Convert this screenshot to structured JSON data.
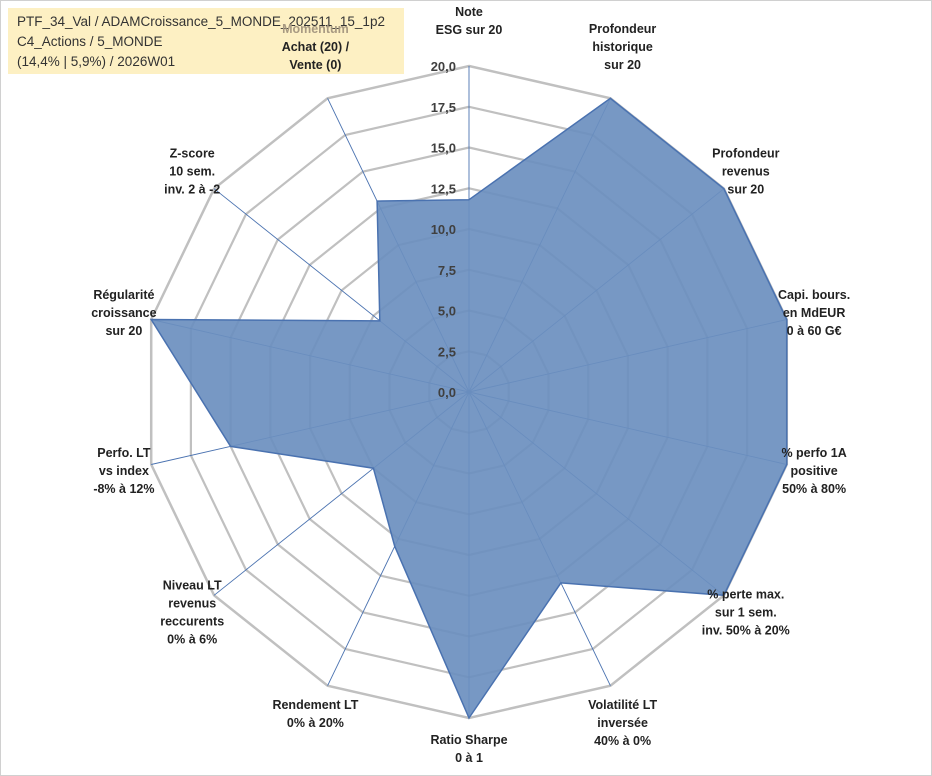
{
  "header": {
    "line1": "PTF_34_Val / ADAMCroissance_5_MONDE_202511_15_1p2",
    "line2": "C4_Actions / 5_MONDE",
    "line3": "(14,4% | 5,9%) / 2026W01"
  },
  "colors": {
    "fill": "#6b8fbf",
    "stroke": "#4a72b0",
    "grid": "#c0c0c0",
    "spoke": "#4a72b0",
    "header_bg": "#fdf0c3"
  },
  "chart_data": {
    "type": "radar",
    "title": "",
    "range": [
      0,
      20
    ],
    "tick_step": 2.5,
    "tick_labels": [
      "0,0",
      "2,5",
      "5,0",
      "7,5",
      "10,0",
      "12,5",
      "15,0",
      "17,5",
      "20,0"
    ],
    "axes": [
      {
        "lines": [
          "Note",
          "ESG sur 20"
        ],
        "value": 11.8
      },
      {
        "lines": [
          "Profondeur",
          "historique",
          "sur 20"
        ],
        "value": 20
      },
      {
        "lines": [
          "Profondeur",
          "revenus",
          "sur 20"
        ],
        "value": 20
      },
      {
        "lines": [
          "Capi. bours.",
          "en MdEUR",
          "0 à 60 G€"
        ],
        "value": 20
      },
      {
        "lines": [
          "% perfo 1A",
          "positive",
          "50% à 80%"
        ],
        "value": 20
      },
      {
        "lines": [
          "% perte max.",
          "sur 1 sem.",
          "inv. 50% à 20%"
        ],
        "value": 20
      },
      {
        "lines": [
          "Volatilité LT",
          "inversée",
          "40% à 0%"
        ],
        "value": 13
      },
      {
        "lines": [
          "Ratio Sharpe",
          "0 à 1"
        ],
        "value": 20
      },
      {
        "lines": [
          "Rendement LT",
          "0% à 20%"
        ],
        "value": 10.5
      },
      {
        "lines": [
          "Niveau LT",
          "revenus",
          "reccurents",
          "0% à 6%"
        ],
        "value": 7.5
      },
      {
        "lines": [
          "Perfo. LT",
          "vs index",
          "-8% à 12%"
        ],
        "value": 15
      },
      {
        "lines": [
          "Régularité",
          "croissance",
          "sur 20"
        ],
        "value": 20
      },
      {
        "lines": [
          "Z-score",
          "10 sem.",
          "inv. 2 à -2"
        ],
        "value": 7
      },
      {
        "lines": [
          "Momentum",
          "Achat (20) /",
          "Vente (0)"
        ],
        "value": 13
      }
    ]
  }
}
